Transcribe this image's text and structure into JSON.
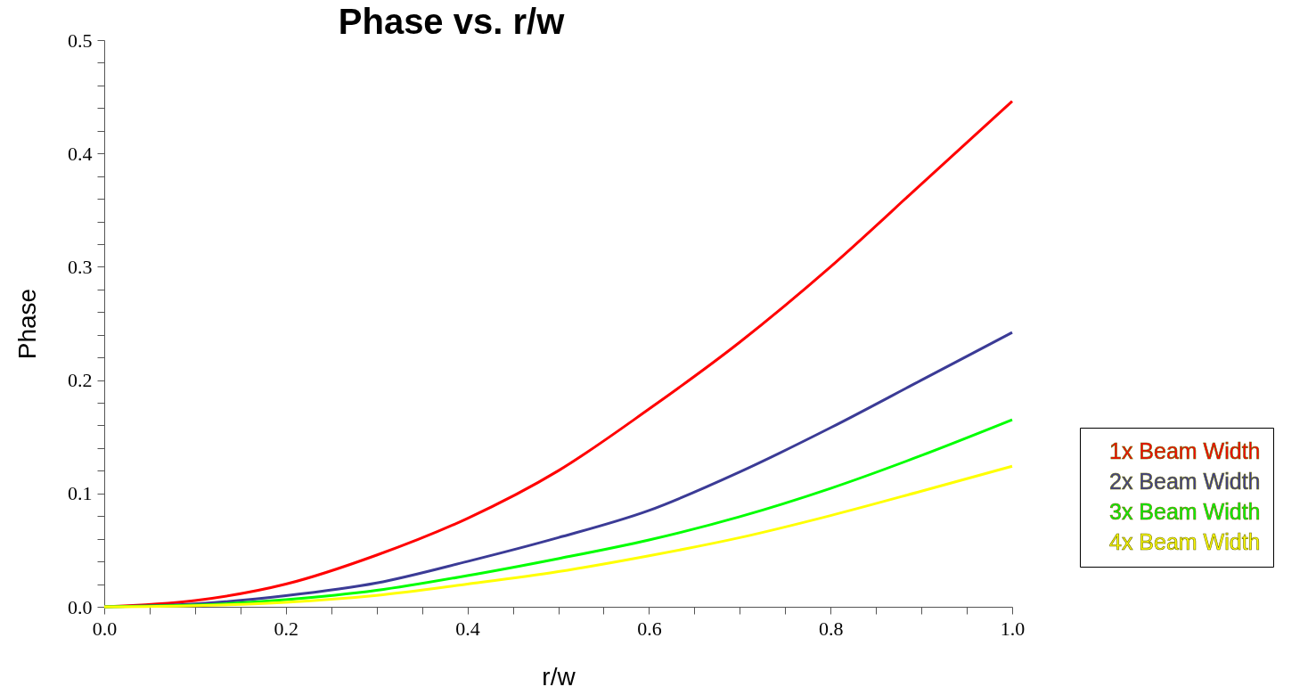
{
  "chart_data": {
    "type": "line",
    "title": "Phase vs. r/w",
    "xlabel": "r/w",
    "ylabel": "Phase",
    "x": [
      0,
      0.1,
      0.2,
      0.3,
      0.4,
      0.5,
      0.6,
      0.7,
      0.8,
      0.9,
      1.0
    ],
    "series": [
      {
        "name": "1x Beam Width",
        "color": "#ff0000",
        "values": [
          0,
          0.0055,
          0.02,
          0.0456,
          0.078,
          0.12,
          0.1745,
          0.2335,
          0.3,
          0.373,
          0.446
        ]
      },
      {
        "name": "2x Beam Width",
        "color": "#3b3b96",
        "values": [
          0,
          0.0025,
          0.0098,
          0.021,
          0.04,
          0.061,
          0.085,
          0.119,
          0.158,
          0.2,
          0.242
        ]
      },
      {
        "name": "3x Beam Width",
        "color": "#00ff00",
        "values": [
          0,
          0.0015,
          0.0063,
          0.0145,
          0.0275,
          0.0425,
          0.059,
          0.0795,
          0.1045,
          0.1335,
          0.165
        ]
      },
      {
        "name": "4x Beam Width",
        "color": "#ffff00",
        "values": [
          0,
          0.001,
          0.004,
          0.01,
          0.02,
          0.031,
          0.045,
          0.061,
          0.0805,
          0.102,
          0.124
        ]
      }
    ],
    "xlim": [
      0,
      1.0
    ],
    "ylim": [
      0,
      0.5
    ],
    "xticks": [
      {
        "value": 0,
        "label": "0.0"
      },
      {
        "value": 0.05,
        "label": null
      },
      {
        "value": 0.1,
        "label": null
      },
      {
        "value": 0.15,
        "label": null
      },
      {
        "value": 0.2,
        "label": "0.2"
      },
      {
        "value": 0.25,
        "label": null
      },
      {
        "value": 0.3,
        "label": null
      },
      {
        "value": 0.35,
        "label": null
      },
      {
        "value": 0.4,
        "label": "0.4"
      },
      {
        "value": 0.45,
        "label": null
      },
      {
        "value": 0.5,
        "label": null
      },
      {
        "value": 0.55,
        "label": null
      },
      {
        "value": 0.6,
        "label": "0.6"
      },
      {
        "value": 0.65,
        "label": null
      },
      {
        "value": 0.7,
        "label": null
      },
      {
        "value": 0.75,
        "label": null
      },
      {
        "value": 0.8,
        "label": "0.8"
      },
      {
        "value": 0.85,
        "label": null
      },
      {
        "value": 0.9,
        "label": null
      },
      {
        "value": 0.95,
        "label": null
      },
      {
        "value": 1.0,
        "label": "1.0"
      }
    ],
    "yticks": [
      {
        "value": 0,
        "label": "0.0"
      },
      {
        "value": 0.02,
        "label": null
      },
      {
        "value": 0.04,
        "label": null
      },
      {
        "value": 0.06,
        "label": null
      },
      {
        "value": 0.08,
        "label": null
      },
      {
        "value": 0.1,
        "label": "0.1"
      },
      {
        "value": 0.12,
        "label": null
      },
      {
        "value": 0.14,
        "label": null
      },
      {
        "value": 0.16,
        "label": null
      },
      {
        "value": 0.18,
        "label": null
      },
      {
        "value": 0.2,
        "label": "0.2"
      },
      {
        "value": 0.22,
        "label": null
      },
      {
        "value": 0.24,
        "label": null
      },
      {
        "value": 0.26,
        "label": null
      },
      {
        "value": 0.28,
        "label": null
      },
      {
        "value": 0.3,
        "label": "0.3"
      },
      {
        "value": 0.32,
        "label": null
      },
      {
        "value": 0.34,
        "label": null
      },
      {
        "value": 0.36,
        "label": null
      },
      {
        "value": 0.38,
        "label": null
      },
      {
        "value": 0.4,
        "label": "0.4"
      },
      {
        "value": 0.42,
        "label": null
      },
      {
        "value": 0.44,
        "label": null
      },
      {
        "value": 0.46,
        "label": null
      },
      {
        "value": 0.48,
        "label": null
      },
      {
        "value": 0.5,
        "label": "0.5"
      }
    ],
    "legend": "right",
    "grid": false,
    "marker": "none",
    "line_style": "solid"
  }
}
